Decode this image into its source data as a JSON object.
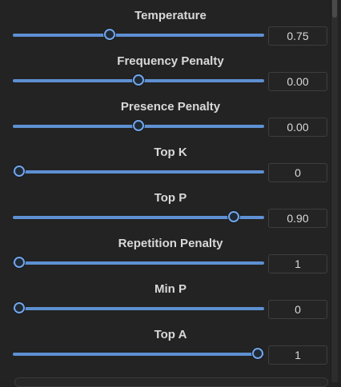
{
  "settings": [
    {
      "label": "Temperature",
      "value": "0.75",
      "position": 0.38
    },
    {
      "label": "Frequency Penalty",
      "value": "0.00",
      "position": 0.5
    },
    {
      "label": "Presence Penalty",
      "value": "0.00",
      "position": 0.5
    },
    {
      "label": "Top K",
      "value": "0",
      "position": 0.0
    },
    {
      "label": "Top P",
      "value": "0.90",
      "position": 0.9
    },
    {
      "label": "Repetition Penalty",
      "value": "1",
      "position": 0.0
    },
    {
      "label": "Min P",
      "value": "0",
      "position": 0.0
    },
    {
      "label": "Top A",
      "value": "1",
      "position": 1.0
    }
  ]
}
